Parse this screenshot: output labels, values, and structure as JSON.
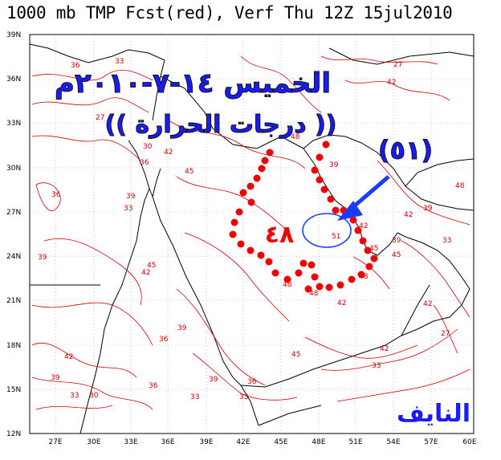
{
  "title": "1000 mb TMP Fcst(red), Verf Thu 12Z 15jul2010",
  "map": {
    "lat_labels": [
      "39N",
      "36N",
      "33N",
      "30N",
      "27N",
      "24N",
      "21N",
      "18N",
      "15N",
      "12N"
    ],
    "lon_labels": [
      "27E",
      "30E",
      "33E",
      "36E",
      "39E",
      "42E",
      "45E",
      "48E",
      "51E",
      "54E",
      "57E",
      "60E"
    ],
    "contour_labels": [
      "33",
      "36",
      "27",
      "30",
      "42",
      "45",
      "39",
      "48",
      "51"
    ]
  },
  "annotations": {
    "date_line": "الخميس ١٤-٧-٢٠١٠م",
    "temp_line": "(( درجات الحرارة ))",
    "max_temp": "(٥١)",
    "area_temp": "٤٨",
    "signature": "النايف",
    "colors": {
      "arabic_text": "#1a1aff",
      "dots": "#ee0000",
      "contours": "#cc0000",
      "arrow": "#1a3cff"
    }
  }
}
